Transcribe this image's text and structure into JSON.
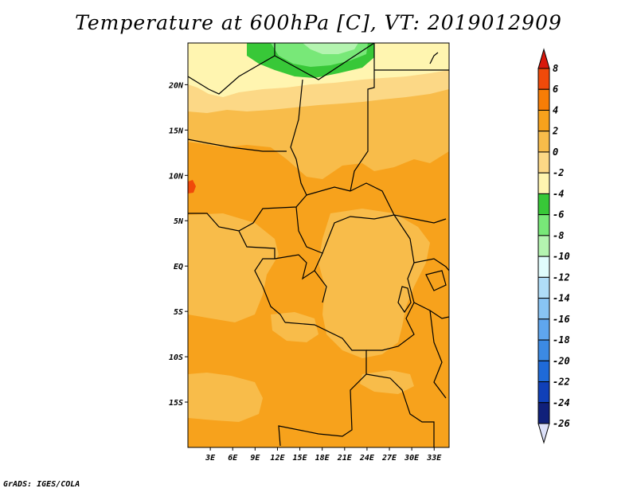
{
  "title": "Temperature at 600hPa [C], VT: 2019012909",
  "credit": "GrADS: IGES/COLA",
  "map": {
    "lon_range": [
      0,
      35
    ],
    "lat_range": [
      -20,
      24.6
    ],
    "x_ticks": [
      {
        "value": 3,
        "label": "3E"
      },
      {
        "value": 6,
        "label": "6E"
      },
      {
        "value": 9,
        "label": "9E"
      },
      {
        "value": 12,
        "label": "12E"
      },
      {
        "value": 15,
        "label": "15E"
      },
      {
        "value": 18,
        "label": "18E"
      },
      {
        "value": 21,
        "label": "21E"
      },
      {
        "value": 24,
        "label": "24E"
      },
      {
        "value": 27,
        "label": "27E"
      },
      {
        "value": 30,
        "label": "30E"
      },
      {
        "value": 33,
        "label": "33E"
      }
    ],
    "y_ticks": [
      {
        "value": 20,
        "label": "20N"
      },
      {
        "value": 15,
        "label": "15N"
      },
      {
        "value": 10,
        "label": "10N"
      },
      {
        "value": 5,
        "label": "5N"
      },
      {
        "value": 0,
        "label": "EQ"
      },
      {
        "value": -5,
        "label": "5S"
      },
      {
        "value": -10,
        "label": "10S"
      },
      {
        "value": -15,
        "label": "15S"
      }
    ]
  },
  "colorbar": {
    "levels": [
      {
        "label": "8",
        "color": "#e8180f"
      },
      {
        "label": "6",
        "color": "#f04a0a"
      },
      {
        "label": "4",
        "color": "#f77d06"
      },
      {
        "label": "2",
        "color": "#f7a21c"
      },
      {
        "label": "0",
        "color": "#f8bc4a"
      },
      {
        "label": "-2",
        "color": "#fcd886"
      },
      {
        "label": "-4",
        "color": "#fff5b0"
      },
      {
        "label": "-6",
        "color": "#38c838"
      },
      {
        "label": "-8",
        "color": "#78e878"
      },
      {
        "label": "-10",
        "color": "#b4f4b0"
      },
      {
        "label": "-12",
        "color": "#e0fcfc"
      },
      {
        "label": "-14",
        "color": "#b0ddf8"
      },
      {
        "label": "-16",
        "color": "#88c4f4"
      },
      {
        "label": "-18",
        "color": "#5fa6ee"
      },
      {
        "label": "-20",
        "color": "#3c8ae4"
      },
      {
        "label": "-22",
        "color": "#1f6ad8"
      },
      {
        "label": "-24",
        "color": "#1040b8"
      },
      {
        "label": "-26",
        "color": "#10207a"
      }
    ],
    "top_color": "#d8180c",
    "bottom_color": "#dce0f8",
    "field_colors": {
      "c0": "#f8bc4a",
      "c2": "#f7a21c",
      "cm2": "#fcd886",
      "cm4": "#fff5b0",
      "cm6": "#38c838",
      "cm8": "#78e878",
      "cm10": "#b4f4b0",
      "c6": "#f04a0a"
    }
  }
}
